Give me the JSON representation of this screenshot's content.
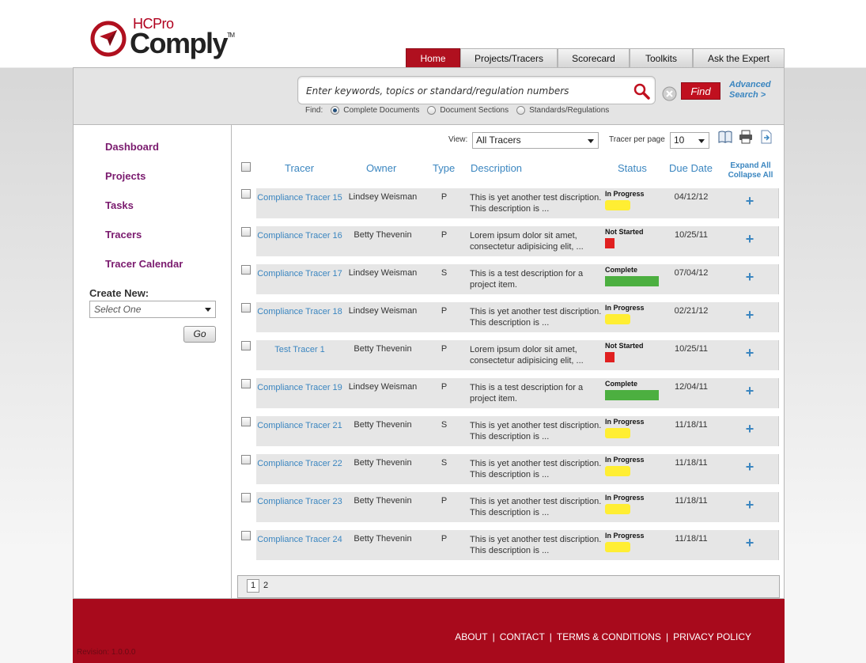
{
  "brand": {
    "hc": "HCPro",
    "name": "Comply",
    "tm": "TM",
    "colors": {
      "primary": "#b0101f",
      "link": "#3b86c0",
      "side_link": "#7a1a6e"
    }
  },
  "nav": [
    {
      "label": "Home",
      "active": true
    },
    {
      "label": "Projects/Tracers",
      "active": false
    },
    {
      "label": "Scorecard",
      "active": false
    },
    {
      "label": "Toolkits",
      "active": false
    },
    {
      "label": "Ask the Expert",
      "active": false
    }
  ],
  "search": {
    "placeholder": "Enter keywords, topics or standard/regulation numbers",
    "find_label": "Find",
    "advanced_line1": "Advanced",
    "advanced_line2": "Search >",
    "find_prefix": "Find:",
    "options": [
      {
        "label": "Complete Documents",
        "selected": true
      },
      {
        "label": "Document Sections",
        "selected": false
      },
      {
        "label": "Standards/Regulations",
        "selected": false
      }
    ]
  },
  "sidebar": {
    "links": [
      "Dashboard",
      "Projects",
      "Tasks",
      "Tracers",
      "Tracer Calendar"
    ],
    "create_new_label": "Create New:",
    "select_value": "Select One",
    "go_label": "Go"
  },
  "toolbar": {
    "view_label": "View:",
    "view_value": "All Tracers",
    "per_page_label": "Tracer per page",
    "per_page_value": "10",
    "icons": [
      "book-icon",
      "print-icon",
      "export-icon"
    ]
  },
  "table": {
    "headers": {
      "tracer": "Tracer",
      "owner": "Owner",
      "type": "Type",
      "description": "Description",
      "status": "Status",
      "due": "Due Date",
      "expand_all": "Expand All",
      "collapse_all": "Collapse All"
    },
    "rows": [
      {
        "tracer": "Compliance Tracer 15",
        "owner": "Lindsey Weisman",
        "type": "P",
        "desc": "This is yet another test discription. This description is ...",
        "status": "In Progress",
        "status_kind": "inprog",
        "due": "04/12/12"
      },
      {
        "tracer": "Compliance Tracer 16",
        "owner": "Betty Thevenin",
        "type": "P",
        "desc": "Lorem ipsum dolor sit amet, consectetur adipisicing elit, ...",
        "status": "Not Started",
        "status_kind": "notstart",
        "due": "10/25/11"
      },
      {
        "tracer": "Compliance Tracer 17",
        "owner": "Lindsey Weisman",
        "type": "S",
        "desc": "This is a test description for a project item.",
        "status": "Complete",
        "status_kind": "complete",
        "due": "07/04/12"
      },
      {
        "tracer": "Compliance Tracer 18",
        "owner": "Lindsey Weisman",
        "type": "P",
        "desc": "This is yet another test discription. This description is ...",
        "status": "In Progress",
        "status_kind": "inprog",
        "due": "02/21/12"
      },
      {
        "tracer": "Test Tracer 1",
        "owner": "Betty Thevenin",
        "type": "P",
        "desc": "Lorem ipsum dolor sit amet, consectetur adipisicing elit, ...",
        "status": "Not Started",
        "status_kind": "notstart",
        "due": "10/25/11"
      },
      {
        "tracer": "Compliance Tracer 19",
        "owner": "Lindsey Weisman",
        "type": "P",
        "desc": "This is a test description for a project item.",
        "status": "Complete",
        "status_kind": "complete",
        "due": "12/04/11"
      },
      {
        "tracer": "Compliance Tracer 21",
        "owner": "Betty Thevenin",
        "type": "S",
        "desc": "This is yet another test discription. This description is ...",
        "status": "In Progress",
        "status_kind": "inprog",
        "due": "11/18/11"
      },
      {
        "tracer": "Compliance Tracer 22",
        "owner": "Betty Thevenin",
        "type": "S",
        "desc": "This is yet another test discription. This description is ...",
        "status": "In Progress",
        "status_kind": "inprog",
        "due": "11/18/11"
      },
      {
        "tracer": "Compliance Tracer 23",
        "owner": "Betty Thevenin",
        "type": "P",
        "desc": "This is yet another test discription. This description is ...",
        "status": "In Progress",
        "status_kind": "inprog",
        "due": "11/18/11"
      },
      {
        "tracer": "Compliance Tracer 24",
        "owner": "Betty Thevenin",
        "type": "P",
        "desc": "This is yet another test discription. This description is ...",
        "status": "In Progress",
        "status_kind": "inprog",
        "due": "11/18/11"
      }
    ],
    "expand_symbol": "+"
  },
  "pager": {
    "pages": [
      "1",
      "2"
    ],
    "current": "1"
  },
  "footer": {
    "links": [
      "ABOUT",
      "CONTACT",
      "TERMS & CONDITIONS",
      "PRIVACY POLICY"
    ],
    "separator": "|",
    "revision": "Revision: 1.0.0.0"
  }
}
